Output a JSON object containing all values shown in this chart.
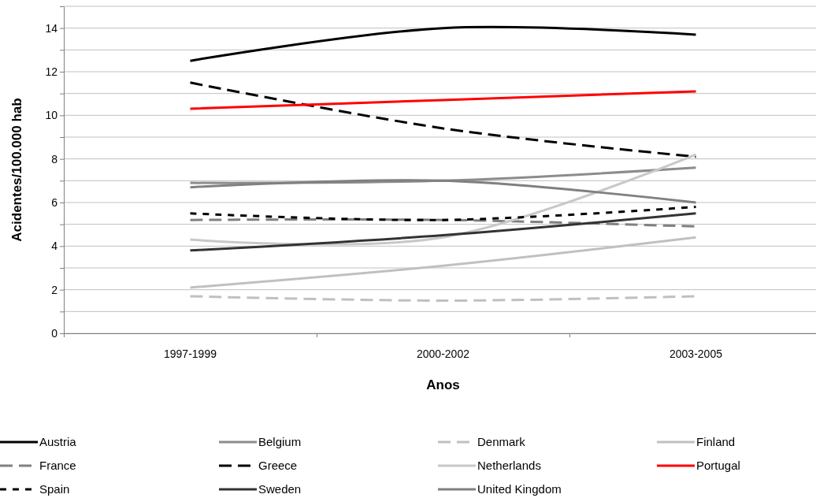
{
  "chart_data": {
    "type": "line",
    "xlabel": "Anos",
    "ylabel": "Acidentes/100.000 hab",
    "categories": [
      "1997-1999",
      "2000-2002",
      "2003-2005"
    ],
    "ylim": [
      0,
      15
    ],
    "yticks": [
      0,
      {
        "value": 1,
        "label": null
      },
      2,
      {
        "value": 3,
        "label": null
      },
      4,
      {
        "value": 5,
        "label": null
      },
      6,
      {
        "value": 7,
        "label": null
      },
      8,
      {
        "value": 9,
        "label": null
      },
      10,
      {
        "value": 11,
        "label": null
      },
      12,
      {
        "value": 13,
        "label": null
      },
      14,
      {
        "value": 15,
        "label": null
      }
    ],
    "grid": "y",
    "legend": "bottom",
    "series": [
      {
        "name": "Austria",
        "color": "#000000",
        "line_style": "solid",
        "values": [
          12.5,
          14.0,
          13.7
        ]
      },
      {
        "name": "Belgium",
        "color": "#8c8c8c",
        "line_style": "solid",
        "values": [
          6.9,
          7.0,
          7.6
        ]
      },
      {
        "name": "Denmark",
        "color": "#c0c0c0",
        "line_style": "dashed",
        "values": [
          1.7,
          1.5,
          1.7
        ]
      },
      {
        "name": "Finland",
        "color": "#c0c0c0",
        "line_style": "solid",
        "values": [
          2.1,
          3.1,
          4.4
        ]
      },
      {
        "name": "France",
        "color": "#808080",
        "line_style": "dashed",
        "values": [
          5.2,
          5.2,
          4.9
        ]
      },
      {
        "name": "Greece",
        "color": "#000000",
        "line_style": "dashed",
        "values": [
          11.5,
          9.4,
          8.1
        ]
      },
      {
        "name": "Netherlands",
        "color": "#c8c8c8",
        "line_style": "solid",
        "values": [
          4.3,
          4.4,
          8.2
        ]
      },
      {
        "name": "Portugal",
        "color": "#ff0000",
        "line_style": "solid",
        "values": [
          10.3,
          10.7,
          11.1
        ]
      },
      {
        "name": "Spain",
        "color": "#000000",
        "line_style": "dotted",
        "values": [
          5.5,
          5.2,
          5.8
        ]
      },
      {
        "name": "Sweden",
        "color": "#333333",
        "line_style": "solid",
        "values": [
          3.8,
          4.5,
          5.5
        ]
      },
      {
        "name": "United Kingdom",
        "color": "#808080",
        "line_style": "solid",
        "values": [
          6.7,
          7.0,
          6.0
        ]
      }
    ]
  }
}
